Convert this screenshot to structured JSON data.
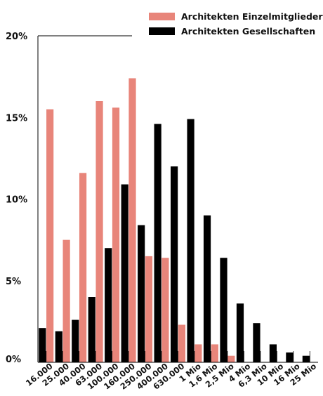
{
  "chart_data": {
    "type": "bar",
    "categories": [
      "16.000",
      "25.000",
      "40.000",
      "63.000",
      "100.000",
      "160.000",
      "250.000",
      "400.000",
      "630.000",
      "1 Mio",
      "1,6 Mio",
      "2,5 Mio",
      "4 Mio",
      "6,3 Mio",
      "10 Mio",
      "16 Mio",
      "25 Mio"
    ],
    "series": [
      {
        "name": "Architekten Einzelmitglieder",
        "color": "#e8857a",
        "values": [
          15.5,
          7.5,
          11.6,
          16.0,
          15.6,
          17.4,
          6.5,
          6.4,
          2.3,
          1.1,
          1.1,
          0.4,
          0,
          0,
          0,
          0,
          0
        ]
      },
      {
        "name": "Architekten Gesellschaften",
        "color": "#000000",
        "values": [
          2.1,
          1.9,
          2.6,
          4.0,
          7.0,
          10.9,
          8.4,
          14.6,
          12.0,
          14.9,
          9.0,
          6.4,
          3.6,
          2.4,
          1.1,
          0.6,
          0.4
        ]
      }
    ],
    "y_ticks": [
      "0%",
      "5%",
      "10%",
      "15%",
      "20%"
    ],
    "y_tick_values": [
      0,
      5,
      10,
      15,
      20
    ],
    "ylim": [
      0,
      20
    ],
    "legend_position": "top-right",
    "grid": false
  }
}
